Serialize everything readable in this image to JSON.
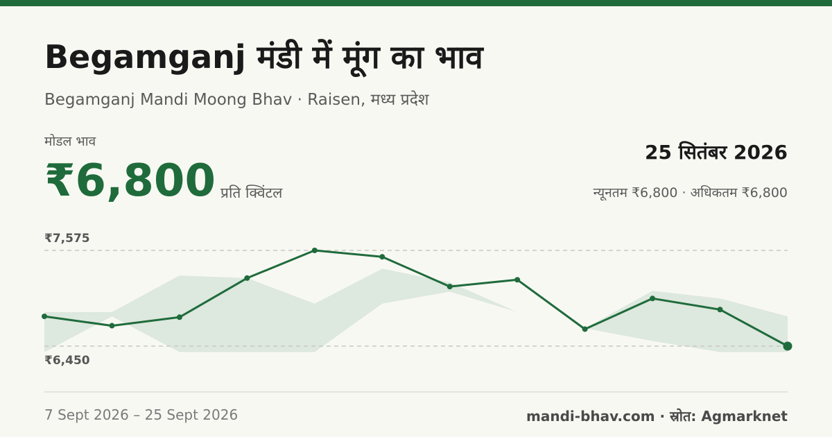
{
  "title": "Begamganj मंडी में मूंग का भाव",
  "subtitle": "Begamganj Mandi Moong Bhav · Raisen, मध्य प्रदेश",
  "price": {
    "label": "मोडल भाव",
    "value": "₹6,800",
    "unit": "प्रति क्विंटल"
  },
  "date": "25 सितंबर 2026",
  "range_text": "न्यूनतम ₹6,800 · अधिकतम ₹6,800",
  "footer": {
    "date_span": "7 Sept 2026 – 25 Sept 2026",
    "source": "mandi-bhav.com · स्रोत: Agmarknet"
  },
  "colors": {
    "accent": "#1f6b3b",
    "band": "#dde8de",
    "background": "#f8f8f3"
  },
  "chart_data": {
    "type": "line",
    "title": "",
    "xlabel": "",
    "ylabel": "",
    "ylim": [
      6450,
      7575
    ],
    "y_tick_labels": {
      "max": "₹7,575",
      "min": "₹6,450"
    },
    "grid": "dashed lines at max and min",
    "legend": "none",
    "series": [
      {
        "values": [
          6800,
          6690,
          6790,
          7250,
          7575,
          7500,
          7150,
          7230,
          6650,
          7010,
          6880,
          6450
        ]
      }
    ],
    "band": {
      "upper": [
        6850,
        6850,
        7280,
        7250,
        6950,
        7360,
        7200,
        6850,
        6660,
        7100,
        7010,
        6800
      ],
      "lower": [
        6380,
        6800,
        6380,
        6380,
        6380,
        6950,
        7090,
        6850,
        6660,
        6510,
        6380,
        6380
      ]
    }
  }
}
